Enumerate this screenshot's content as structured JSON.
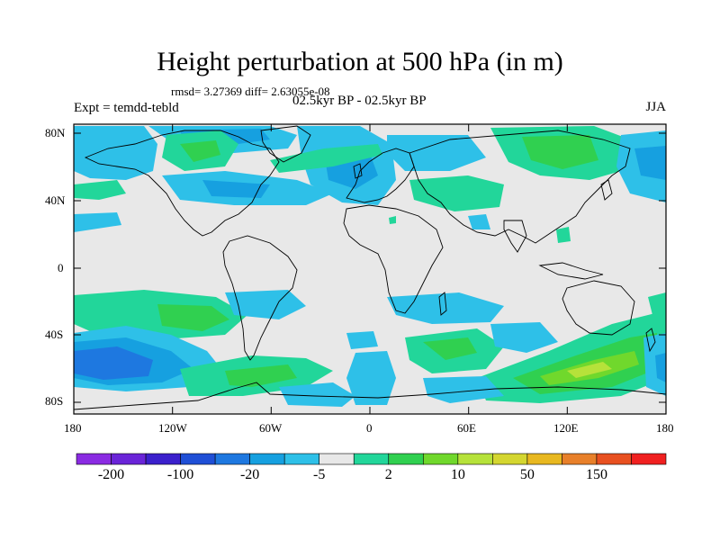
{
  "title": "Height perturbation at 500 hPa (in m)",
  "stats": "rmsd= 3.27369 diff= 2.63055e-08",
  "expt": "Expt = temdd-tebld",
  "period": "02.5kyr BP - 02.5kyr BP",
  "season": "JJA",
  "lat_labels": [
    "80N",
    "40N",
    "0",
    "40S",
    "80S"
  ],
  "lon_labels": [
    "180",
    "120W",
    "60W",
    "0",
    "60E",
    "120E",
    "180"
  ],
  "colorbar": {
    "colors": [
      "#8a2be2",
      "#6a24d8",
      "#3b20cc",
      "#1f4fd6",
      "#1e78e0",
      "#16a0e0",
      "#2ec0e8",
      "#e8e8e8",
      "#22d69a",
      "#30d050",
      "#70d82c",
      "#b6e23a",
      "#d4d630",
      "#e8b820",
      "#e8802a",
      "#e85020",
      "#f02020"
    ],
    "labels": [
      "-200",
      "-100",
      "-20",
      "-5",
      "2",
      "10",
      "50",
      "150"
    ]
  },
  "colors": {
    "land_bg": "#e8e8e8",
    "coast": "#000000"
  }
}
